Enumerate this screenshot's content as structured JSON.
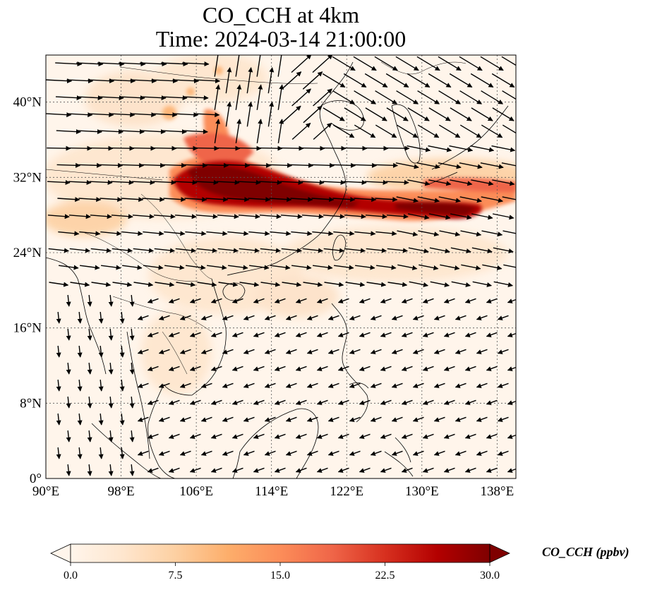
{
  "title": {
    "line1": "CO_CCH at 4km",
    "line2": "Time: 2024-03-14 21:00:00"
  },
  "map": {
    "lon_range": [
      90,
      140
    ],
    "lat_range": [
      0,
      45
    ],
    "lon_ticks": [
      {
        "value": 90,
        "label": "90°E"
      },
      {
        "value": 98,
        "label": "98°E"
      },
      {
        "value": 106,
        "label": "106°E"
      },
      {
        "value": 114,
        "label": "114°E"
      },
      {
        "value": 122,
        "label": "122°E"
      },
      {
        "value": 130,
        "label": "130°E"
      },
      {
        "value": 138,
        "label": "138°E"
      }
    ],
    "lat_ticks": [
      {
        "value": 0,
        "label": "0°"
      },
      {
        "value": 8,
        "label": "8°N"
      },
      {
        "value": 16,
        "label": "16°N"
      },
      {
        "value": 24,
        "label": "24°N"
      },
      {
        "value": 32,
        "label": "32°N"
      },
      {
        "value": 40,
        "label": "40°N"
      }
    ],
    "gridlines": "dotted"
  },
  "colorbar": {
    "label": "CO_CCH (ppbv)",
    "min": 0,
    "max": 30,
    "ticks": [
      {
        "value": 0,
        "label": "0.0"
      },
      {
        "value": 7.5,
        "label": "7.5"
      },
      {
        "value": 15,
        "label": "15.0"
      },
      {
        "value": 22.5,
        "label": "22.5"
      },
      {
        "value": 30,
        "label": "30.0"
      }
    ],
    "colormap": [
      "#fff5eb",
      "#fee6ce",
      "#fdd0a2",
      "#fdae6b",
      "#fd8d3c",
      "#f16913",
      "#d94801",
      "#a63603",
      "#7f2704"
    ],
    "extend": "both"
  },
  "colors": {
    "plume_high": "#7f0000",
    "plume_mid": "#d7301f",
    "background": "#fff5eb",
    "coastline": "#000000",
    "wind_arrow": "#000000"
  }
}
